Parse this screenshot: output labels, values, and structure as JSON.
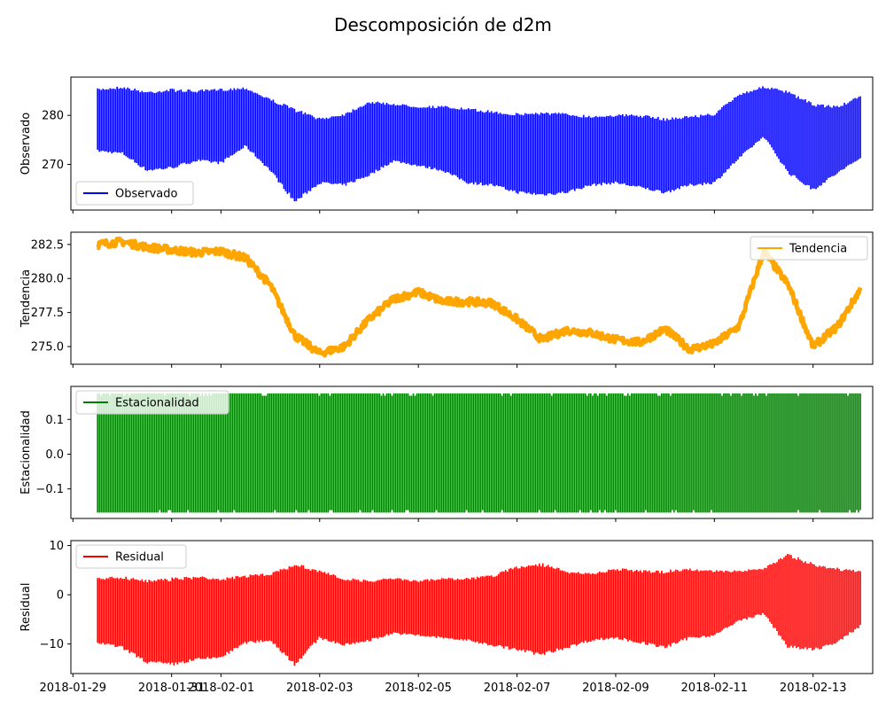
{
  "chart_data": {
    "title": "Descomposición de d2m",
    "x_ticks": [
      "2018-01-29",
      "2018-01-31",
      "2018-02-01",
      "2018-02-03",
      "2018-02-05",
      "2018-02-07",
      "2018-02-09",
      "2018-02-11",
      "2018-02-13"
    ],
    "x_range": [
      "2018-01-28T23:00",
      "2018-02-14T05:00"
    ],
    "data_range": [
      "2018-01-29T12:00",
      "2018-02-13T23:00"
    ],
    "panels": [
      {
        "type": "area",
        "ylabel": "Observado",
        "ylim": [
          260.7,
          287.8
        ],
        "y_ticks": [
          270,
          280
        ],
        "legend": {
          "label": "Observado",
          "position": "lower-left"
        },
        "color": "#0000ff",
        "x": [
          "2018-01-29T12:00",
          "2018-01-30T00:00",
          "2018-01-30T12:00",
          "2018-01-31T00:00",
          "2018-01-31T12:00",
          "2018-02-01T00:00",
          "2018-02-01T12:00",
          "2018-02-02T00:00",
          "2018-02-02T12:00",
          "2018-02-03T00:00",
          "2018-02-03T12:00",
          "2018-02-04T00:00",
          "2018-02-04T12:00",
          "2018-02-05T00:00",
          "2018-02-05T12:00",
          "2018-02-06T00:00",
          "2018-02-06T12:00",
          "2018-02-07T00:00",
          "2018-02-07T12:00",
          "2018-02-08T00:00",
          "2018-02-08T12:00",
          "2018-02-09T00:00",
          "2018-02-09T12:00",
          "2018-02-10T00:00",
          "2018-02-10T12:00",
          "2018-02-11T00:00",
          "2018-02-11T12:00",
          "2018-02-12T00:00",
          "2018-02-12T12:00",
          "2018-02-13T00:00",
          "2018-02-13T12:00",
          "2018-02-13T23:00"
        ],
        "upper": [
          285.5,
          286.0,
          285.0,
          285.5,
          285.2,
          285.5,
          285.8,
          283.5,
          281.5,
          279.5,
          280.5,
          283.0,
          282.5,
          282.0,
          282.0,
          281.5,
          281.0,
          280.5,
          280.8,
          280.5,
          280.0,
          280.3,
          280.2,
          279.5,
          280.0,
          280.5,
          284.5,
          286.0,
          285.0,
          282.5,
          282.0,
          284.0
        ],
        "lower": [
          272.5,
          272.0,
          268.5,
          269.0,
          270.5,
          270.0,
          273.5,
          268.5,
          262.0,
          266.0,
          265.5,
          267.5,
          270.5,
          269.5,
          268.5,
          266.0,
          265.5,
          264.0,
          263.5,
          264.0,
          265.5,
          266.0,
          265.0,
          264.0,
          265.5,
          266.0,
          271.0,
          275.5,
          268.0,
          264.5,
          268.0,
          271.0
        ]
      },
      {
        "type": "line",
        "ylabel": "Tendencia",
        "ylim": [
          273.7,
          283.4
        ],
        "y_ticks": [
          275.0,
          277.5,
          280.0,
          282.5
        ],
        "y_tick_labels": [
          "275.0",
          "277.5",
          "280.0",
          "282.5"
        ],
        "legend": {
          "label": "Tendencia",
          "position": "upper-right"
        },
        "color": "#ffa500",
        "x": [
          "2018-01-29T12:00",
          "2018-01-30T00:00",
          "2018-01-30T12:00",
          "2018-01-31T00:00",
          "2018-01-31T12:00",
          "2018-02-01T00:00",
          "2018-02-01T12:00",
          "2018-02-02T00:00",
          "2018-02-02T12:00",
          "2018-02-03T00:00",
          "2018-02-03T12:00",
          "2018-02-04T00:00",
          "2018-02-04T12:00",
          "2018-02-05T00:00",
          "2018-02-05T12:00",
          "2018-02-06T00:00",
          "2018-02-06T12:00",
          "2018-02-07T00:00",
          "2018-02-07T12:00",
          "2018-02-08T00:00",
          "2018-02-08T12:00",
          "2018-02-09T00:00",
          "2018-02-09T12:00",
          "2018-02-10T00:00",
          "2018-02-10T12:00",
          "2018-02-11T00:00",
          "2018-02-11T12:00",
          "2018-02-12T00:00",
          "2018-02-12T12:00",
          "2018-02-13T00:00",
          "2018-02-13T12:00",
          "2018-02-13T23:00"
        ],
        "values": [
          282.5,
          282.7,
          282.3,
          282.1,
          281.9,
          282.0,
          281.5,
          279.5,
          275.8,
          274.5,
          275.0,
          277.0,
          278.5,
          279.0,
          278.3,
          278.3,
          278.2,
          277.0,
          275.5,
          276.2,
          276.0,
          275.5,
          275.3,
          276.3,
          274.8,
          275.2,
          276.5,
          282.0,
          279.5,
          275.0,
          276.5,
          279.2
        ]
      },
      {
        "type": "area",
        "ylabel": "Estacionalidad",
        "ylim": [
          -0.185,
          0.195
        ],
        "y_ticks": [
          -0.1,
          0.0,
          0.1
        ],
        "y_tick_labels": [
          "−0.1",
          "0.0",
          "0.1"
        ],
        "legend": {
          "label": "Estacionalidad",
          "position": "upper-left"
        },
        "color": "#008000",
        "x": [
          "2018-01-29T12:00",
          "2018-02-13T23:00"
        ],
        "upper": [
          0.175,
          0.175
        ],
        "lower": [
          -0.168,
          -0.168
        ]
      },
      {
        "type": "area",
        "ylabel": "Residual",
        "ylim": [
          -16.0,
          11.0
        ],
        "y_ticks": [
          -10,
          0,
          10
        ],
        "y_tick_labels": [
          "−10",
          "0",
          "10"
        ],
        "legend": {
          "label": "Residual",
          "position": "upper-left"
        },
        "color": "#ff0000",
        "x": [
          "2018-01-29T12:00",
          "2018-01-30T00:00",
          "2018-01-30T12:00",
          "2018-01-31T00:00",
          "2018-01-31T12:00",
          "2018-02-01T00:00",
          "2018-02-01T12:00",
          "2018-02-02T00:00",
          "2018-02-02T12:00",
          "2018-02-03T00:00",
          "2018-02-03T12:00",
          "2018-02-04T00:00",
          "2018-02-04T12:00",
          "2018-02-05T00:00",
          "2018-02-05T12:00",
          "2018-02-06T00:00",
          "2018-02-06T12:00",
          "2018-02-07T00:00",
          "2018-02-07T12:00",
          "2018-02-08T00:00",
          "2018-02-08T12:00",
          "2018-02-09T00:00",
          "2018-02-09T12:00",
          "2018-02-10T00:00",
          "2018-02-10T12:00",
          "2018-02-11T00:00",
          "2018-02-11T12:00",
          "2018-02-12T00:00",
          "2018-02-12T12:00",
          "2018-02-13T00:00",
          "2018-02-13T12:00",
          "2018-02-13T23:00"
        ],
        "upper": [
          3.5,
          3.8,
          3.0,
          3.5,
          3.8,
          3.5,
          4.0,
          4.5,
          6.5,
          5.0,
          3.5,
          3.0,
          3.5,
          3.0,
          3.5,
          3.5,
          4.0,
          6.0,
          6.5,
          5.0,
          4.5,
          5.5,
          5.0,
          5.0,
          5.5,
          5.0,
          5.0,
          5.5,
          8.5,
          6.5,
          5.5,
          5.0
        ],
        "lower": [
          -10.0,
          -11.0,
          -14.0,
          -14.5,
          -13.5,
          -13.0,
          -10.0,
          -9.5,
          -14.5,
          -9.0,
          -10.5,
          -9.5,
          -8.0,
          -8.5,
          -9.0,
          -9.5,
          -10.5,
          -11.5,
          -12.5,
          -11.0,
          -9.5,
          -9.0,
          -10.0,
          -11.0,
          -9.0,
          -8.5,
          -5.5,
          -4.0,
          -11.0,
          -11.5,
          -10.0,
          -6.5
        ]
      }
    ]
  }
}
